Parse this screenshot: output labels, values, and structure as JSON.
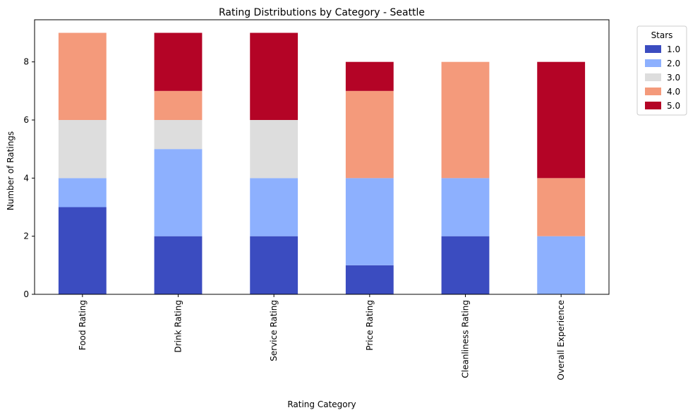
{
  "chart_data": {
    "type": "bar",
    "stacked": true,
    "title": "Rating Distributions by Category - Seattle",
    "xlabel": "Rating Category",
    "ylabel": "Number of Ratings",
    "ylim": [
      0,
      9.45
    ],
    "yticks": [
      0,
      2,
      4,
      6,
      8
    ],
    "grid": false,
    "legend_placement": "outside top-right",
    "legend_title": "Stars",
    "categories": [
      "Food Rating",
      "Drink Rating",
      "Service Rating",
      "Price Rating",
      "Cleanliness Rating",
      "Overall Experience"
    ],
    "series": [
      {
        "name": "1.0",
        "color": "#3b4cc0",
        "values": [
          3,
          2,
          2,
          1,
          2,
          0
        ]
      },
      {
        "name": "2.0",
        "color": "#8db0fe",
        "values": [
          1,
          3,
          2,
          3,
          2,
          2
        ]
      },
      {
        "name": "3.0",
        "color": "#dddddd",
        "values": [
          2,
          1,
          2,
          0,
          0,
          0
        ]
      },
      {
        "name": "4.0",
        "color": "#f49a7b",
        "values": [
          3,
          1,
          0,
          3,
          4,
          2
        ]
      },
      {
        "name": "5.0",
        "color": "#b40426",
        "values": [
          0,
          2,
          3,
          1,
          0,
          4
        ]
      }
    ]
  }
}
